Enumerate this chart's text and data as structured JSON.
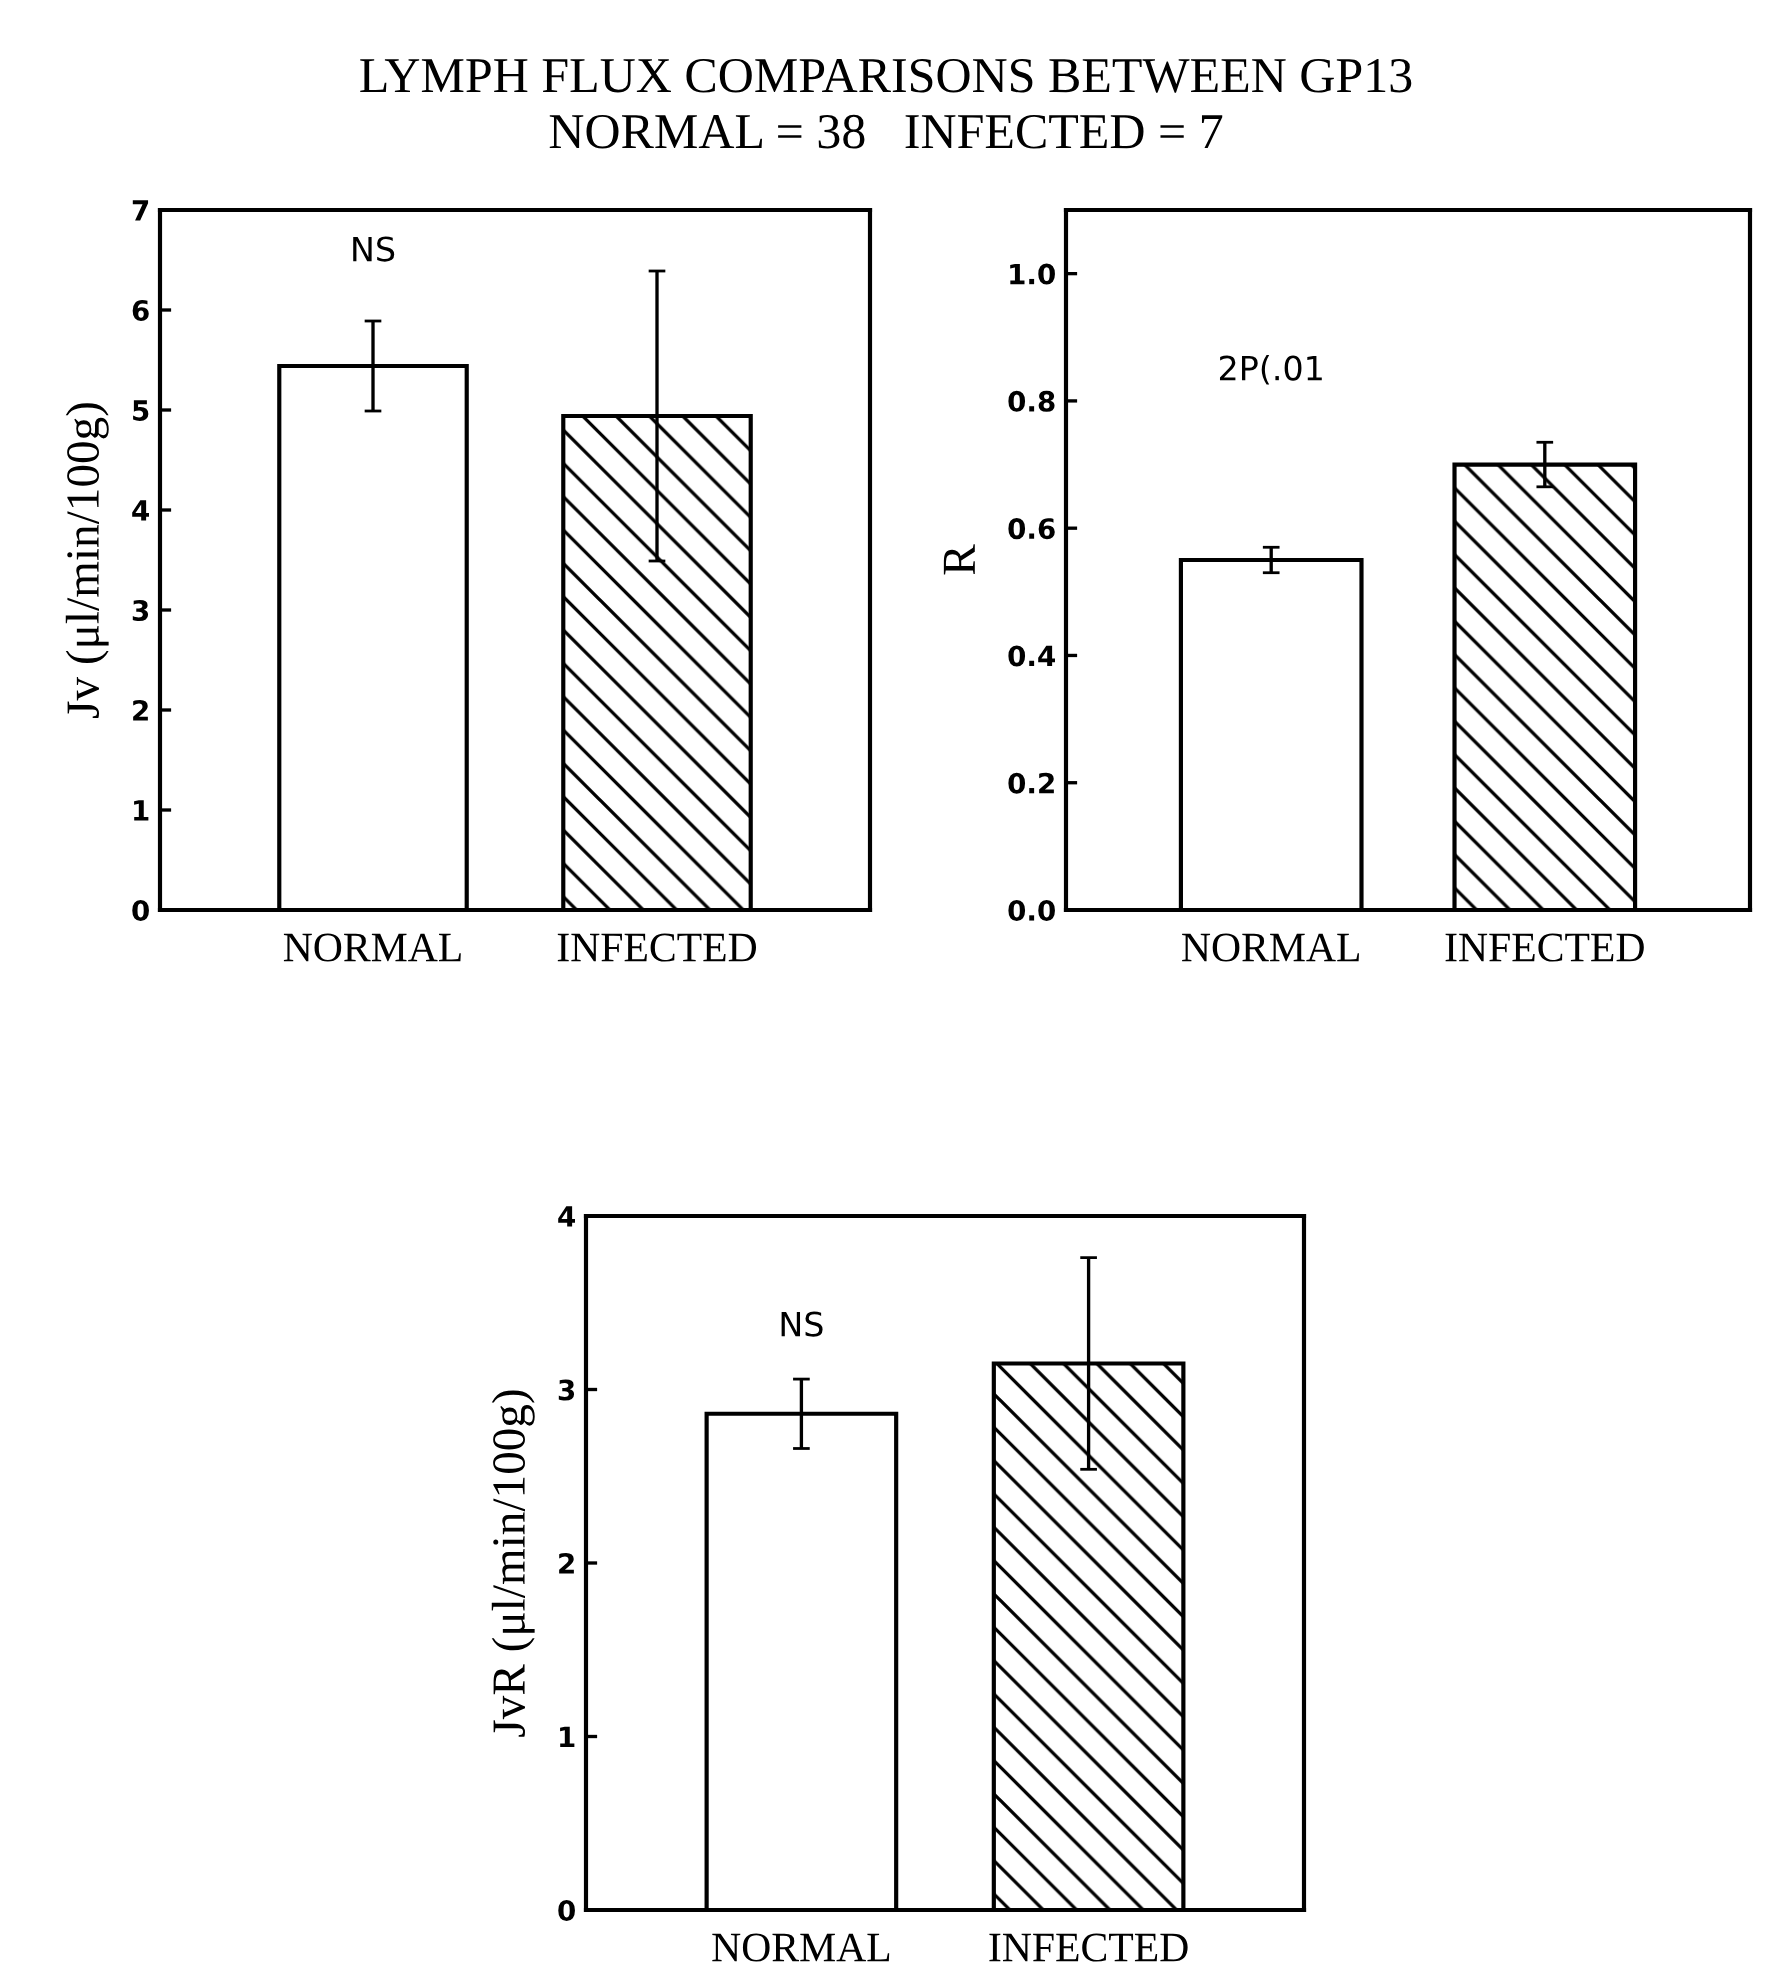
{
  "chart_data": [
    {
      "type": "bar",
      "title": "LYMPH FLUX COMPARISONS BETWEEN GP13",
      "subtitle": "NORMAL = 38   INFECTED = 7",
      "ylabel": "Jv (μl/min/100g)",
      "categories": [
        "NORMAL",
        "INFECTED"
      ],
      "values": [
        5.44,
        4.94
      ],
      "errors": [
        0.45,
        1.45
      ],
      "colors": [
        "#000000",
        "#000000"
      ],
      "ylim": [
        0,
        7
      ],
      "yticks": [
        0,
        1,
        2,
        3,
        4,
        5,
        6,
        7
      ],
      "annotations": [
        "NS"
      ]
    },
    {
      "type": "bar",
      "ylabel": "R",
      "categories": [
        "NORMAL",
        "INFECTED"
      ],
      "values": [
        0.55,
        0.7
      ],
      "errors": [
        0.02,
        0.035
      ],
      "colors": [
        "#000000",
        "#000000"
      ],
      "ylim": [
        0,
        1.1
      ],
      "yticks": [
        {
          "value": 0,
          "label": "0.0"
        },
        0.2,
        0.4,
        0.6,
        0.8,
        {
          "value": 1,
          "label": "1.0"
        }
      ],
      "annotations": [
        "2P(.01"
      ]
    },
    {
      "type": "bar",
      "ylabel": "JvR (μl/min/100g)",
      "categories": [
        "NORMAL",
        "INFECTED"
      ],
      "values": [
        2.86,
        3.15
      ],
      "errors": [
        0.2,
        0.61
      ],
      "colors": [
        "#000000",
        "#000000"
      ],
      "ylim": [
        0,
        4
      ],
      "yticks": [
        0,
        1,
        2,
        3,
        4
      ],
      "annotations": [
        "NS"
      ]
    }
  ]
}
